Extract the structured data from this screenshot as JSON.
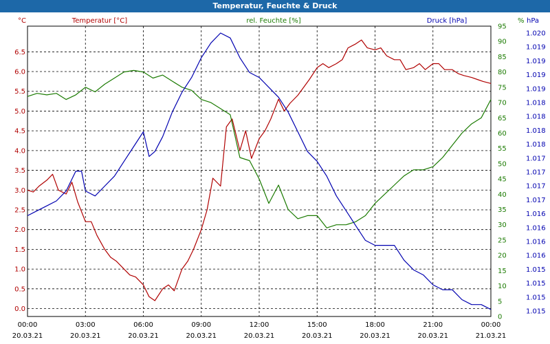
{
  "window": {
    "title": "Temperatur, Feuchte & Druck"
  },
  "chart_data": {
    "type": "line",
    "title": "Temperatur, Feuchte & Druck",
    "grid": true,
    "x_ticks": [
      {
        "time": "00:00",
        "date": "20.03.21"
      },
      {
        "time": "03:00",
        "date": "20.03.21"
      },
      {
        "time": "06:00",
        "date": "20.03.21"
      },
      {
        "time": "09:00",
        "date": "20.03.21"
      },
      {
        "time": "12:00",
        "date": "20.03.21"
      },
      {
        "time": "15:00",
        "date": "20.03.21"
      },
      {
        "time": "18:00",
        "date": "20.03.21"
      },
      {
        "time": "21:00",
        "date": "20.03.21"
      },
      {
        "time": "00:00",
        "date": "21.03.21"
      }
    ],
    "x_hours_range": [
      0,
      24
    ],
    "axes": {
      "temperature": {
        "name": "Temperatur [°C]",
        "unit": "°C",
        "color": "#b00000",
        "range": [
          -0.2,
          7.15
        ],
        "ticks": [
          "0.0",
          "0.5",
          "1.0",
          "1.5",
          "2.0",
          "2.5",
          "3.0",
          "3.5",
          "4.0",
          "4.5",
          "5.0",
          "5.5",
          "6.0",
          "6.5"
        ]
      },
      "humidity": {
        "name": "rel. Feuchte [%]",
        "unit": "%",
        "color": "#1a7a00",
        "range": [
          0,
          95
        ],
        "ticks": [
          "0",
          "5",
          "10",
          "15",
          "20",
          "25",
          "30",
          "35",
          "40",
          "45",
          "50",
          "55",
          "60",
          "65",
          "70",
          "75",
          "80",
          "85",
          "90",
          "95"
        ]
      },
      "pressure": {
        "name": "Druck [hPa]",
        "unit": "hPa",
        "color": "#0000b0",
        "ticks": [
          "1.015",
          "1.015",
          "1.015",
          "1.015",
          "1.016",
          "1.016",
          "1.016",
          "1.016",
          "1.017",
          "1.017",
          "1.017",
          "1.017",
          "1.018",
          "1.018",
          "1.018",
          "1.018",
          "1.019",
          "1.019",
          "1.019",
          "1.019",
          "1.020"
        ]
      }
    },
    "series": [
      {
        "name": "Temperatur [°C]",
        "axis": "temperature",
        "color": "#b00000",
        "x": [
          0,
          0.3,
          0.6,
          1.0,
          1.3,
          1.6,
          2.0,
          2.3,
          2.6,
          3.0,
          3.3,
          3.6,
          4.0,
          4.3,
          4.6,
          5.0,
          5.3,
          5.6,
          6.0,
          6.3,
          6.6,
          7.0,
          7.3,
          7.6,
          8.0,
          8.3,
          8.6,
          9.0,
          9.3,
          9.6,
          10.0,
          10.3,
          10.6,
          11.0,
          11.3,
          11.6,
          12.0,
          12.3,
          12.6,
          13.0,
          13.3,
          13.6,
          14.0,
          14.3,
          14.6,
          15.0,
          15.3,
          15.6,
          16.0,
          16.3,
          16.6,
          17.0,
          17.3,
          17.6,
          18.0,
          18.3,
          18.6,
          19.0,
          19.3,
          19.6,
          20.0,
          20.3,
          20.6,
          21.0,
          21.3,
          21.6,
          22.0,
          22.3,
          22.6,
          23.0,
          23.3,
          23.6,
          24.0
        ],
        "values": [
          3.0,
          2.95,
          3.1,
          3.25,
          3.4,
          3.0,
          2.9,
          3.2,
          2.7,
          2.2,
          2.2,
          1.85,
          1.5,
          1.3,
          1.2,
          1.0,
          0.85,
          0.8,
          0.6,
          0.3,
          0.2,
          0.5,
          0.6,
          0.45,
          1.0,
          1.2,
          1.5,
          2.0,
          2.5,
          3.3,
          3.1,
          4.6,
          4.8,
          4.0,
          4.5,
          3.8,
          4.3,
          4.5,
          4.8,
          5.3,
          5.0,
          5.2,
          5.4,
          5.6,
          5.8,
          6.1,
          6.2,
          6.1,
          6.2,
          6.3,
          6.6,
          6.7,
          6.8,
          6.6,
          6.55,
          6.6,
          6.4,
          6.3,
          6.3,
          6.05,
          6.1,
          6.2,
          6.05,
          6.2,
          6.2,
          6.05,
          6.05,
          5.95,
          5.9,
          5.85,
          5.8,
          5.75,
          5.7
        ]
      },
      {
        "name": "rel. Feuchte [%]",
        "axis": "humidity",
        "color": "#1a7a00",
        "x": [
          0,
          0.5,
          1.0,
          1.5,
          2.0,
          2.5,
          3.0,
          3.5,
          4.0,
          4.5,
          5.0,
          5.5,
          6.0,
          6.5,
          7.0,
          7.5,
          8.0,
          8.5,
          9.0,
          9.5,
          10.0,
          10.5,
          11.0,
          11.5,
          12.0,
          12.5,
          13.0,
          13.5,
          14.0,
          14.5,
          15.0,
          15.5,
          16.0,
          16.5,
          17.0,
          17.5,
          18.0,
          18.5,
          19.0,
          19.5,
          20.0,
          20.5,
          21.0,
          21.5,
          22.0,
          22.5,
          23.0,
          23.5,
          24.0
        ],
        "values": [
          72,
          73,
          72.5,
          73,
          71,
          72.5,
          75,
          73.5,
          76,
          78,
          80,
          80.5,
          80,
          78,
          79,
          77,
          75,
          74,
          71,
          70,
          68,
          66,
          52,
          51,
          45,
          37,
          43,
          35,
          32,
          33,
          33,
          29,
          30,
          30,
          31,
          33,
          37,
          40,
          43,
          46,
          48,
          48,
          49,
          52,
          56,
          60,
          63,
          65,
          71
        ]
      },
      {
        "name": "Druck [hPa]",
        "axis": "pressure",
        "color": "#0000b0",
        "x": [
          0,
          0.5,
          1.0,
          1.5,
          2.0,
          2.5,
          2.8,
          3.0,
          3.5,
          4.0,
          4.5,
          5.0,
          5.5,
          6.0,
          6.3,
          6.6,
          7.0,
          7.5,
          8.0,
          8.5,
          9.0,
          9.5,
          10.0,
          10.5,
          11.0,
          11.5,
          12.0,
          12.5,
          13.0,
          13.5,
          14.0,
          14.5,
          15.0,
          15.5,
          16.0,
          16.5,
          17.0,
          17.5,
          18.0,
          18.5,
          19.0,
          19.5,
          20.0,
          20.5,
          21.0,
          21.5,
          22.0,
          22.5,
          23.0,
          23.5,
          24.0
        ],
        "values": [
          1.0169,
          1.017,
          1.0171,
          1.0172,
          1.0174,
          1.0178,
          1.0178,
          1.0174,
          1.0173,
          1.0175,
          1.0177,
          1.018,
          1.0183,
          1.0186,
          1.0181,
          1.0182,
          1.0185,
          1.019,
          1.0194,
          1.0197,
          1.0201,
          1.0204,
          1.0206,
          1.0205,
          1.0201,
          1.0198,
          1.0197,
          1.0195,
          1.0193,
          1.019,
          1.0186,
          1.0182,
          1.018,
          1.0177,
          1.0173,
          1.017,
          1.0167,
          1.0164,
          1.0163,
          1.0163,
          1.0163,
          1.016,
          1.0158,
          1.0157,
          1.0155,
          1.0154,
          1.0154,
          1.0152,
          1.0151,
          1.0151,
          1.015
        ]
      }
    ]
  }
}
